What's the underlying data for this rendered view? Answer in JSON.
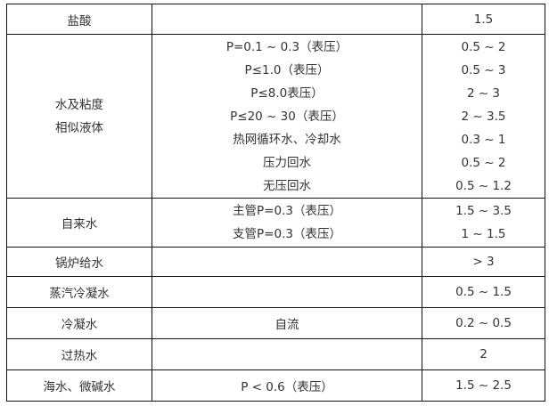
{
  "rows": [
    {
      "medium": "盐酸",
      "conditions": [
        ""
      ],
      "velocities": [
        "1.5"
      ]
    },
    {
      "medium_lines": [
        "水及粘度",
        "相似液体"
      ],
      "conditions": [
        "P=0.1 ~ 0.3（表压）",
        "P≤1.0（表压）",
        "P≤8.0表压）",
        "P≤20 ~ 30（表压）",
        "热网循环水、冷却水",
        "压力回水",
        "无压回水"
      ],
      "velocities": [
        "0.5 ~ 2",
        "0.5 ~ 3",
        "2 ~ 3",
        "2 ~ 3.5",
        "0.3 ~ 1",
        "0.5 ~ 2",
        "0.5 ~ 1.2"
      ]
    },
    {
      "medium": "自来水",
      "conditions": [
        "主管P=0.3（表压）",
        "支管P=0.3（表压）"
      ],
      "velocities": [
        "1.5 ~ 3.5",
        "1 ~ 1.5"
      ]
    },
    {
      "medium": "锅炉给水",
      "conditions": [
        ""
      ],
      "velocities": [
        "> 3"
      ]
    },
    {
      "medium": "蒸汽冷凝水",
      "conditions": [
        ""
      ],
      "velocities": [
        "0.5 ~ 1.5"
      ]
    },
    {
      "medium": "冷凝水",
      "conditions": [
        "自流"
      ],
      "velocities": [
        "0.2 ~ 0.5"
      ]
    },
    {
      "medium": "过热水",
      "conditions": [
        ""
      ],
      "velocities": [
        "2"
      ]
    },
    {
      "medium": "海水、微碱水",
      "conditions": [
        "P < 0.6（表压）"
      ],
      "velocities": [
        "1.5 ~ 2.5"
      ]
    }
  ]
}
